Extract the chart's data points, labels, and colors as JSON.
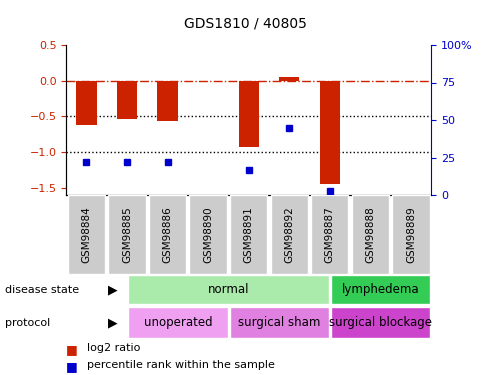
{
  "title": "GDS1810 / 40805",
  "samples": [
    "GSM98884",
    "GSM98885",
    "GSM98886",
    "GSM98890",
    "GSM98891",
    "GSM98892",
    "GSM98887",
    "GSM98888",
    "GSM98889"
  ],
  "log2_ratio": [
    -0.62,
    -0.54,
    -0.56,
    0.0,
    -0.93,
    0.05,
    -1.45,
    0.0,
    0.0
  ],
  "percentile_rank": [
    22,
    22,
    22,
    0,
    17,
    45,
    3,
    0,
    0
  ],
  "ylim_left": [
    -1.6,
    0.5
  ],
  "ylim_right": [
    0,
    100
  ],
  "yticks_left": [
    -1.5,
    -1.0,
    -0.5,
    0.0,
    0.5
  ],
  "yticks_right": [
    0,
    25,
    50,
    75,
    100
  ],
  "hline_dashed": 0.0,
  "hlines_dotted": [
    -0.5,
    -1.0
  ],
  "disease_state": [
    {
      "label": "normal",
      "start": 0,
      "end": 6,
      "color": "#aaeaaa"
    },
    {
      "label": "lymphedema",
      "start": 6,
      "end": 9,
      "color": "#33cc55"
    }
  ],
  "protocol": [
    {
      "label": "unoperated",
      "start": 0,
      "end": 3,
      "color": "#f0a0f0"
    },
    {
      "label": "surgical sham",
      "start": 3,
      "end": 6,
      "color": "#e080e0"
    },
    {
      "label": "surgical blockage",
      "start": 6,
      "end": 9,
      "color": "#cc44cc"
    }
  ],
  "bar_color": "#cc2200",
  "dot_color": "#0000cc",
  "bar_width": 0.5,
  "sample_box_color": "#cccccc",
  "tick_label_fontsize": 7.5,
  "legend_fontsize": 8
}
